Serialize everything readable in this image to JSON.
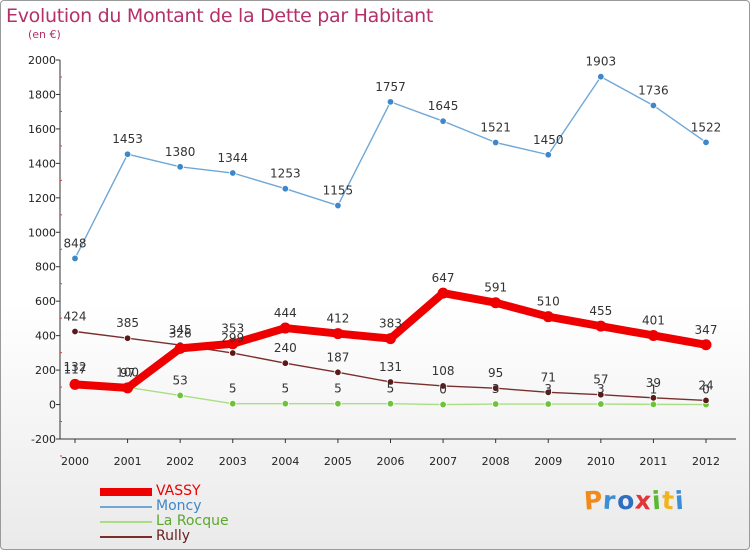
{
  "title": "Evolution du Montant de la Dette par Habitant",
  "subtitle": "(en €)",
  "logo": {
    "letters": [
      "P",
      "r",
      "o",
      "x",
      "i",
      "t",
      "i"
    ],
    "colors": [
      "#f08a1c",
      "#3b8fd6",
      "#2f6fc2",
      "#e0363a",
      "#5bb832",
      "#f0b41c",
      "#3b8fd6"
    ]
  },
  "chart_data": {
    "type": "line",
    "categories": [
      "2000",
      "2001",
      "2002",
      "2003",
      "2004",
      "2005",
      "2006",
      "2007",
      "2008",
      "2009",
      "2010",
      "2011",
      "2012"
    ],
    "ylim": [
      -200,
      2000
    ],
    "yticks": [
      -200,
      0,
      200,
      400,
      600,
      800,
      1000,
      1200,
      1400,
      1600,
      1800,
      2000
    ],
    "grid": false,
    "legend_position": "bottom-left",
    "series": [
      {
        "name": "Moncy",
        "color": "#6fa8d8",
        "marker": "#3f87c8",
        "values": [
          848,
          1453,
          1380,
          1344,
          1253,
          1155,
          1757,
          1645,
          1521,
          1450,
          1903,
          1736,
          1522
        ]
      },
      {
        "name": "La Rocque",
        "color": "#a9de82",
        "marker": "#6fc23a",
        "values": [
          132,
          100,
          53,
          5,
          5,
          5,
          5,
          0,
          3,
          3,
          3,
          1,
          0
        ]
      },
      {
        "name": "Rully",
        "color": "#7a2e2e",
        "marker": "#5a1a1a",
        "values": [
          424,
          385,
          345,
          299,
          240,
          187,
          131,
          108,
          95,
          71,
          57,
          39,
          24
        ]
      },
      {
        "name": "VASSY",
        "color": "#ee0000",
        "marker": "#ee0000",
        "values": [
          117,
          97,
          326,
          353,
          444,
          412,
          383,
          647,
          591,
          510,
          455,
          401,
          347
        ]
      }
    ]
  },
  "legend": [
    {
      "name": "VASSY",
      "color": "#ee0000"
    },
    {
      "name": "Moncy",
      "color": "#6fa8d8"
    },
    {
      "name": "La Rocque",
      "color": "#a9de82"
    },
    {
      "name": "Rully",
      "color": "#7a2e2e"
    }
  ]
}
